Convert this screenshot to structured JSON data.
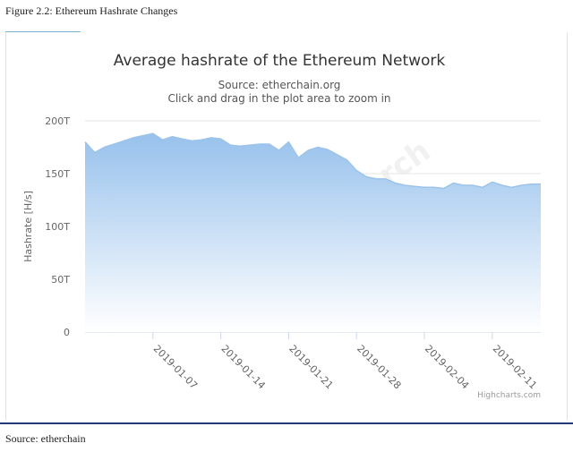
{
  "figure": {
    "caption": "Figure 2.2: Ethereum Hashrate Changes",
    "source_note": "Source: etherchain"
  },
  "watermark": "Huobi Research",
  "chart_data": {
    "type": "area",
    "title": "Average hashrate of the Ethereum Network",
    "subtitle": "Source: etherchain.org",
    "subtitle2": "Click and drag in the plot area to zoom in",
    "ylabel": "Hashrate [H/s]",
    "xlabel": "",
    "ylim": [
      0,
      200
    ],
    "y_ticks": [
      0,
      50,
      100,
      150,
      200
    ],
    "y_tick_labels": [
      "0",
      "50T",
      "100T",
      "150T",
      "200T"
    ],
    "x_range": [
      "2018-12-31",
      "2019-02-16"
    ],
    "x_ticks": [
      "2019-01-07",
      "2019-01-14",
      "2019-01-21",
      "2019-01-28",
      "2019-02-04",
      "2019-02-11"
    ],
    "credits": "Highcharts.com",
    "grid": true,
    "legend": "none",
    "fill_color_top": "#97c1ec",
    "fill_color_bottom": "#ffffff",
    "line_color": "#9cc3ea",
    "series": [
      {
        "unit": "TH/s",
        "x": [
          "2018-12-31",
          "2019-01-01",
          "2019-01-02",
          "2019-01-03",
          "2019-01-04",
          "2019-01-05",
          "2019-01-06",
          "2019-01-07",
          "2019-01-08",
          "2019-01-09",
          "2019-01-10",
          "2019-01-11",
          "2019-01-12",
          "2019-01-13",
          "2019-01-14",
          "2019-01-15",
          "2019-01-16",
          "2019-01-17",
          "2019-01-18",
          "2019-01-19",
          "2019-01-20",
          "2019-01-21",
          "2019-01-22",
          "2019-01-23",
          "2019-01-24",
          "2019-01-25",
          "2019-01-26",
          "2019-01-27",
          "2019-01-28",
          "2019-01-29",
          "2019-01-30",
          "2019-01-31",
          "2019-02-01",
          "2019-02-02",
          "2019-02-03",
          "2019-02-04",
          "2019-02-05",
          "2019-02-06",
          "2019-02-07",
          "2019-02-08",
          "2019-02-09",
          "2019-02-10",
          "2019-02-11",
          "2019-02-12",
          "2019-02-13",
          "2019-02-14",
          "2019-02-15",
          "2019-02-16"
        ],
        "values": [
          180,
          170,
          175,
          178,
          181,
          184,
          186,
          188,
          182,
          185,
          183,
          181,
          182,
          184,
          183,
          177,
          176,
          177,
          178,
          178,
          172,
          180,
          165,
          172,
          175,
          173,
          168,
          163,
          153,
          147,
          145,
          145,
          141,
          139,
          138,
          137,
          137,
          136,
          141,
          139,
          139,
          137,
          142,
          139,
          137,
          139,
          140,
          140
        ]
      }
    ]
  }
}
